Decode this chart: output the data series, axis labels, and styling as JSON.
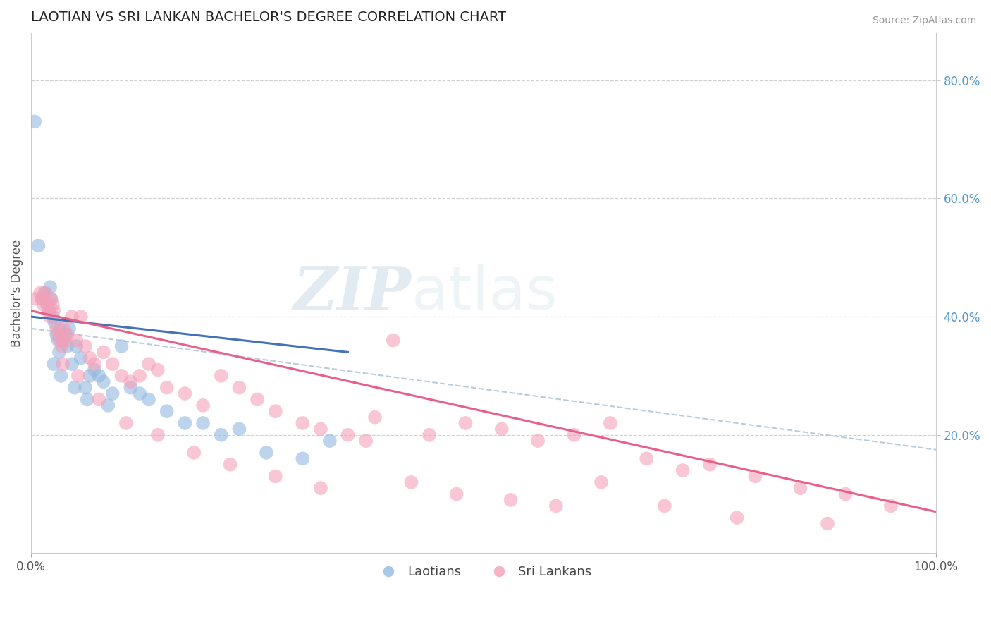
{
  "title": "LAOTIAN VS SRI LANKAN BACHELOR'S DEGREE CORRELATION CHART",
  "source": "Source: ZipAtlas.com",
  "ylabel": "Bachelor's Degree",
  "right_yticks": [
    0.2,
    0.4,
    0.6,
    0.8
  ],
  "right_yticklabels": [
    "20.0%",
    "40.0%",
    "60.0%",
    "80.0%"
  ],
  "blue_color": "#92b8e0",
  "pink_color": "#f4a0b8",
  "blue_line_color": "#4472b8",
  "pink_line_color": "#e8608a",
  "dashed_line_color": "#b0c8d8",
  "watermark_zip": "ZIP",
  "watermark_atlas": "atlas",
  "ylim_min": 0.0,
  "ylim_max": 0.88,
  "xlim_min": 0,
  "xlim_max": 100,
  "grid_color": "#cccccc",
  "grid_yticks": [
    0.2,
    0.4,
    0.6,
    0.8
  ],
  "lao_x": [
    0.4,
    1.2,
    1.5,
    1.8,
    2.0,
    2.1,
    2.2,
    2.4,
    2.6,
    2.8,
    3.0,
    3.1,
    3.2,
    3.5,
    3.8,
    4.0,
    4.2,
    4.5,
    5.0,
    5.5,
    6.0,
    6.5,
    7.0,
    7.5,
    8.0,
    9.0,
    10.0,
    11.0,
    12.0,
    13.0,
    15.0,
    17.0,
    19.0,
    21.0,
    23.0,
    26.0,
    30.0,
    33.0,
    2.5,
    3.3,
    4.8,
    6.2,
    8.5,
    0.8
  ],
  "lao_y": [
    0.73,
    0.43,
    0.44,
    0.42,
    0.41,
    0.45,
    0.43,
    0.4,
    0.39,
    0.37,
    0.36,
    0.34,
    0.38,
    0.36,
    0.37,
    0.35,
    0.38,
    0.32,
    0.35,
    0.33,
    0.28,
    0.3,
    0.31,
    0.3,
    0.29,
    0.27,
    0.35,
    0.28,
    0.27,
    0.26,
    0.24,
    0.22,
    0.22,
    0.2,
    0.21,
    0.17,
    0.16,
    0.19,
    0.32,
    0.3,
    0.28,
    0.26,
    0.25,
    0.52
  ],
  "sri_x": [
    0.5,
    1.0,
    1.2,
    1.4,
    1.6,
    1.8,
    2.0,
    2.1,
    2.2,
    2.4,
    2.5,
    2.8,
    3.0,
    3.2,
    3.4,
    3.6,
    3.8,
    4.0,
    4.5,
    5.0,
    5.5,
    6.0,
    6.5,
    7.0,
    8.0,
    9.0,
    10.0,
    11.0,
    12.0,
    13.0,
    14.0,
    15.0,
    17.0,
    19.0,
    21.0,
    23.0,
    25.0,
    27.0,
    30.0,
    32.0,
    35.0,
    38.0,
    40.0,
    44.0,
    48.0,
    52.0,
    56.0,
    60.0,
    64.0,
    68.0,
    72.0,
    75.0,
    80.0,
    85.0,
    90.0,
    95.0,
    3.5,
    5.2,
    7.5,
    10.5,
    14.0,
    18.0,
    22.0,
    27.0,
    32.0,
    37.0,
    42.0,
    47.0,
    53.0,
    58.0,
    63.0,
    70.0,
    78.0,
    88.0
  ],
  "sri_y": [
    0.43,
    0.44,
    0.43,
    0.42,
    0.44,
    0.42,
    0.41,
    0.4,
    0.43,
    0.42,
    0.41,
    0.38,
    0.37,
    0.36,
    0.35,
    0.38,
    0.36,
    0.37,
    0.4,
    0.36,
    0.4,
    0.35,
    0.33,
    0.32,
    0.34,
    0.32,
    0.3,
    0.29,
    0.3,
    0.32,
    0.31,
    0.28,
    0.27,
    0.25,
    0.3,
    0.28,
    0.26,
    0.24,
    0.22,
    0.21,
    0.2,
    0.23,
    0.36,
    0.2,
    0.22,
    0.21,
    0.19,
    0.2,
    0.22,
    0.16,
    0.14,
    0.15,
    0.13,
    0.11,
    0.1,
    0.08,
    0.32,
    0.3,
    0.26,
    0.22,
    0.2,
    0.17,
    0.15,
    0.13,
    0.11,
    0.19,
    0.12,
    0.1,
    0.09,
    0.08,
    0.12,
    0.08,
    0.06,
    0.05
  ]
}
